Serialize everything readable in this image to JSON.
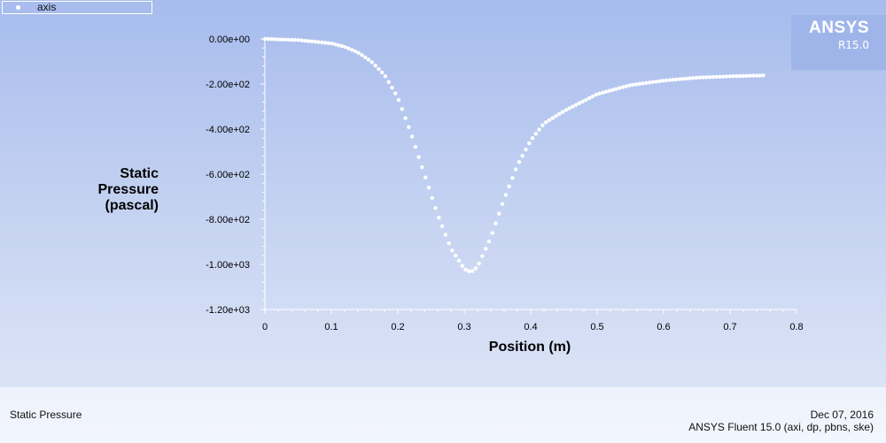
{
  "legend": {
    "label": "axis"
  },
  "logo": {
    "name": "ANSYS",
    "version": "R15.0"
  },
  "footer": {
    "left": "Static Pressure",
    "date": "Dec 07, 2016",
    "version": "ANSYS Fluent 15.0 (axi, dp, pbns, ske)"
  },
  "colors": {
    "points": "#ffffff",
    "axis": "#ffffff"
  },
  "chart_data": {
    "type": "scatter",
    "ylabel_lines": [
      "Static",
      "Pressure",
      "(pascal)"
    ],
    "xlabel": "Position (m)",
    "xlim": [
      0,
      0.8
    ],
    "ylim": [
      -1200,
      0
    ],
    "x_ticks": [
      "0",
      "0.1",
      "0.2",
      "0.3",
      "0.4",
      "0.5",
      "0.6",
      "0.7",
      "0.8"
    ],
    "y_ticks": [
      "0.00e+00",
      "-2.00e+02",
      "-4.00e+02",
      "-6.00e+02",
      "-8.00e+02",
      "-1.00e+03",
      "-1.20e+03"
    ],
    "grid": false,
    "legend_position": "top-left",
    "series": [
      {
        "name": "axis",
        "x": [
          0,
          0.05,
          0.1,
          0.12,
          0.14,
          0.16,
          0.18,
          0.2,
          0.22,
          0.24,
          0.26,
          0.28,
          0.3,
          0.31,
          0.32,
          0.34,
          0.36,
          0.38,
          0.4,
          0.42,
          0.45,
          0.5,
          0.55,
          0.6,
          0.65,
          0.7,
          0.75
        ],
        "y": [
          0,
          -5,
          -20,
          -35,
          -60,
          -100,
          -160,
          -260,
          -420,
          -600,
          -780,
          -930,
          -1020,
          -1035,
          -1010,
          -880,
          -710,
          -560,
          -450,
          -375,
          -320,
          -245,
          -205,
          -185,
          -172,
          -166,
          -162
        ]
      }
    ]
  }
}
